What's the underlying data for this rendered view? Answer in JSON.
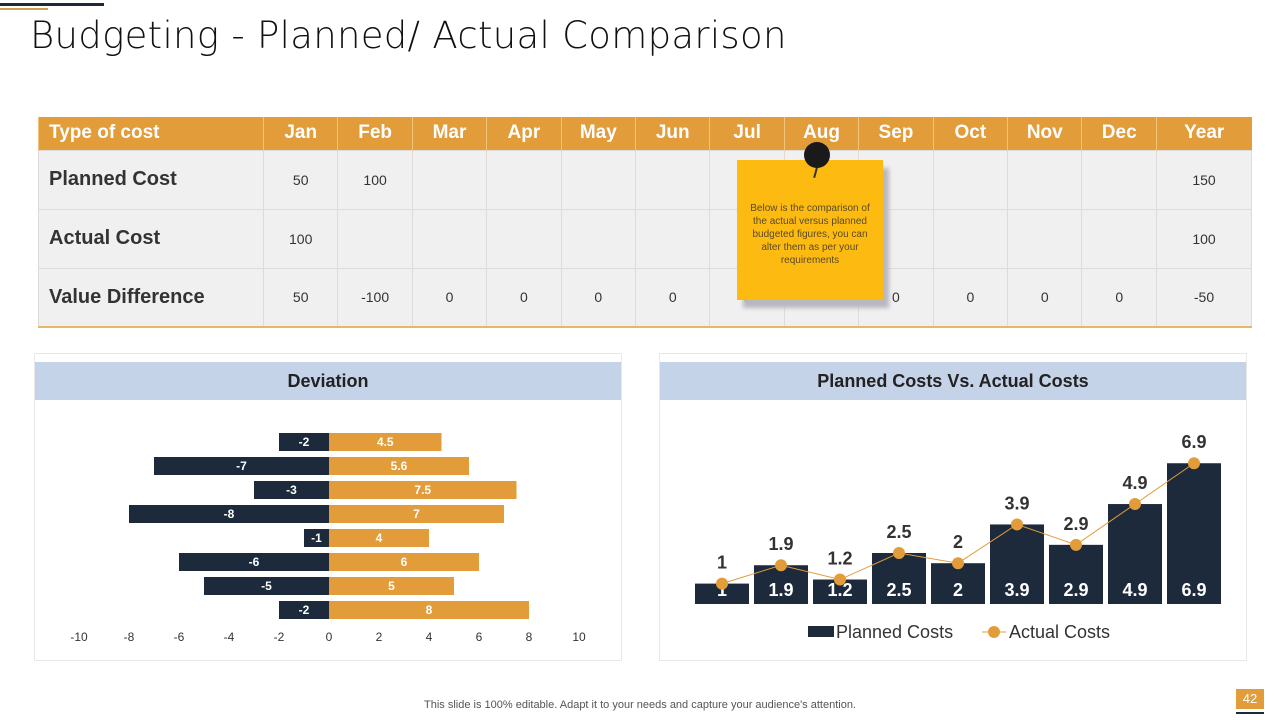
{
  "title": "Budgeting - Planned/ Actual Comparison",
  "table": {
    "headers": [
      "Type of cost",
      "Jan",
      "Feb",
      "Mar",
      "Apr",
      "May",
      "Jun",
      "Jul",
      "Aug",
      "Sep",
      "Oct",
      "Nov",
      "Dec",
      "Year"
    ],
    "rows": [
      {
        "label": "Planned Cost",
        "cells": [
          "50",
          "100",
          "",
          "",
          "",
          "",
          "",
          "",
          "",
          "",
          "",
          "",
          "150"
        ]
      },
      {
        "label": "Actual Cost",
        "cells": [
          "100",
          "",
          "",
          "",
          "",
          "",
          "",
          "",
          "",
          "",
          "",
          "",
          "100"
        ]
      },
      {
        "label": "Value Difference",
        "cells": [
          "50",
          "-100",
          "0",
          "0",
          "0",
          "0",
          "0",
          "0",
          "0",
          "0",
          "0",
          "0",
          "-50"
        ]
      }
    ]
  },
  "sticky_note": "Below is the comparison of the actual versus planned budgeted figures, you can alter them as per your requirements",
  "colors": {
    "orange": "#e29c3a",
    "navy": "#1c2a3c",
    "header_blue": "#c5d3e8",
    "note": "#fdbb12"
  },
  "chart_data": [
    {
      "type": "bar",
      "orientation": "horizontal",
      "stacked_diverging": true,
      "title": "Deviation",
      "xlim": [
        -10,
        10
      ],
      "xticks": [
        "-10",
        "-8",
        "-6",
        "-4",
        "-2",
        "0",
        "2",
        "4",
        "6",
        "8",
        "10"
      ],
      "series": [
        {
          "values": [
            -2,
            -7,
            -3,
            -8,
            -1,
            -6,
            -5,
            -2
          ],
          "color": "#1c2a3c"
        },
        {
          "values": [
            4.5,
            5.6,
            7.5,
            7,
            4,
            6,
            5,
            8
          ],
          "color": "#e29c3a"
        }
      ],
      "grid": false
    },
    {
      "type": "bar+line",
      "title": "Planned Costs Vs. Actual Costs",
      "legend": "bottom",
      "series": [
        {
          "name": "Planned Costs",
          "type": "bar",
          "values": [
            1,
            1.9,
            1.2,
            2.5,
            2,
            3.9,
            2.9,
            4.9,
            6.9
          ],
          "color": "#1c2a3c"
        },
        {
          "name": "Actual Costs",
          "type": "line",
          "values": [
            1,
            1.9,
            1.2,
            2.5,
            2,
            3.9,
            2.9,
            4.9,
            6.9
          ],
          "color": "#e29c3a"
        }
      ],
      "grid": false
    }
  ],
  "footer": "This slide is 100% editable. Adapt it to your needs and capture your audience's attention.",
  "page_number": "42"
}
